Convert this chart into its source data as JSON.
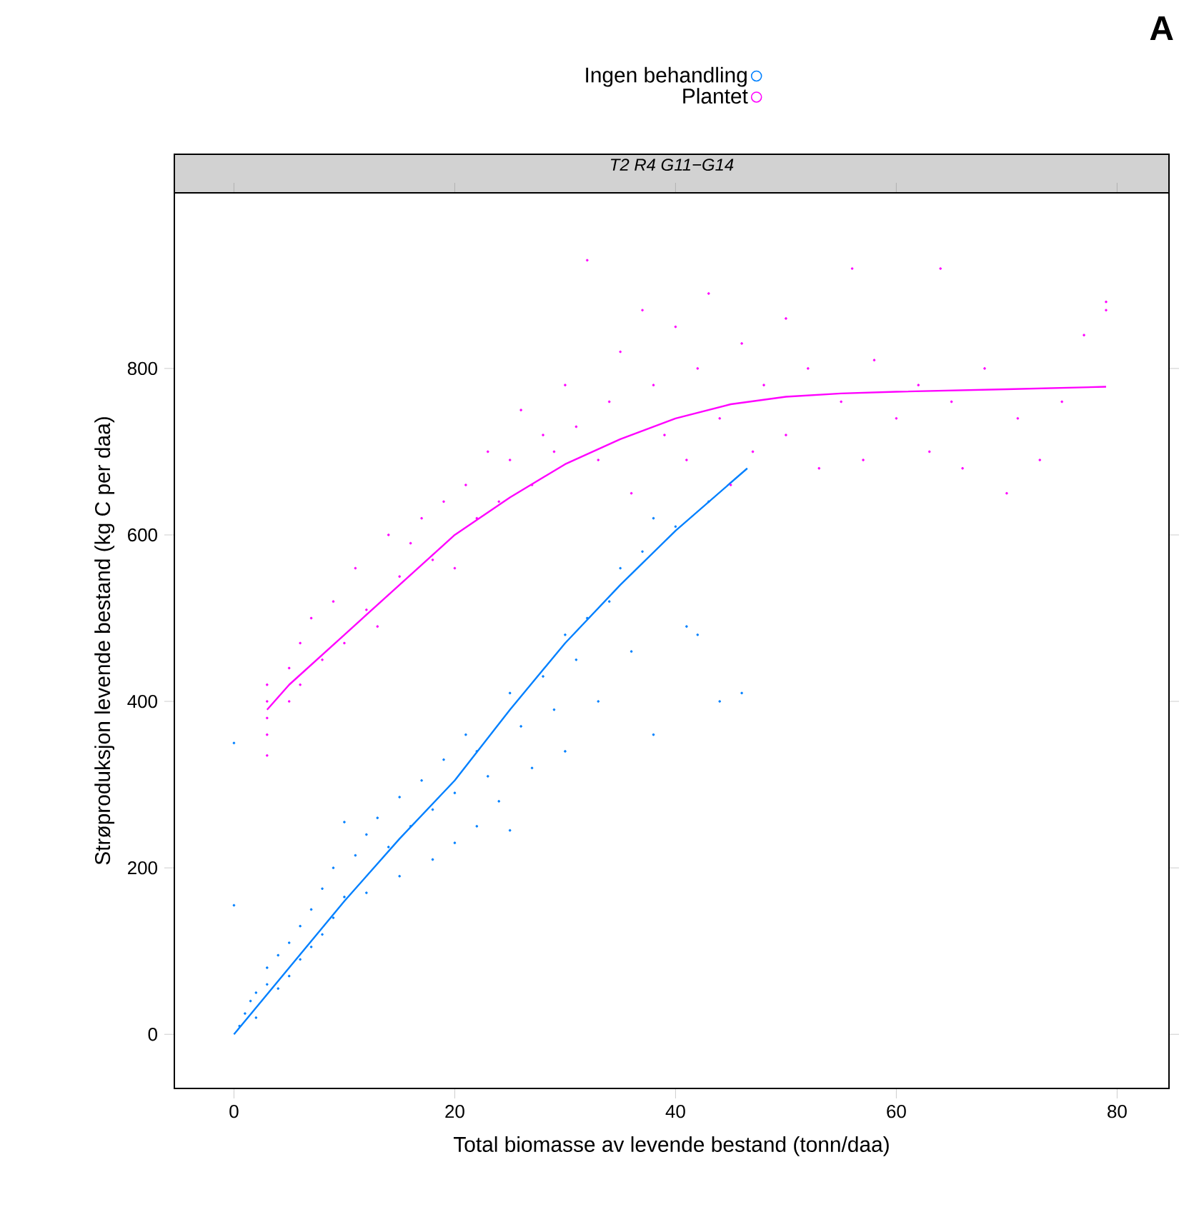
{
  "chart_data": {
    "type": "scatter",
    "title": "T2 R4 G11−G14",
    "xlabel": "Total biomasse av levende bestand (tonn/daa)",
    "ylabel": "Strøproduksjon levende bestand (kg C per daa)",
    "annotations": [
      "A"
    ],
    "legend": "top",
    "marker": "circle",
    "xlim": [
      -5.4,
      84.7
    ],
    "ylim": [
      -65,
      1011
    ],
    "xticks": [
      0,
      20,
      40,
      60,
      80
    ],
    "yticks": [
      0,
      200,
      400,
      600,
      800
    ],
    "series": [
      {
        "name": "Ingen behandling",
        "color": "#0080ff",
        "x": [
          0,
          0,
          0.5,
          1,
          1.5,
          2,
          2,
          3,
          3,
          4,
          4,
          5,
          5,
          6,
          6,
          7,
          7,
          8,
          8,
          9,
          9,
          10,
          10,
          11,
          12,
          12,
          13,
          14,
          15,
          15,
          16,
          17,
          18,
          18,
          19,
          20,
          20,
          21,
          22,
          22,
          23,
          24,
          25,
          25,
          26,
          27,
          28,
          29,
          30,
          30,
          31,
          32,
          33,
          34,
          35,
          36,
          37,
          38,
          38,
          40,
          41,
          42,
          44,
          46,
          43
        ],
        "values": [
          350,
          155,
          10,
          25,
          40,
          50,
          20,
          60,
          80,
          95,
          55,
          110,
          70,
          130,
          90,
          150,
          105,
          175,
          120,
          200,
          140,
          255,
          165,
          215,
          240,
          170,
          260,
          225,
          285,
          190,
          250,
          305,
          270,
          210,
          330,
          290,
          230,
          360,
          340,
          250,
          310,
          280,
          410,
          245,
          370,
          320,
          430,
          390,
          480,
          340,
          450,
          500,
          400,
          520,
          560,
          460,
          580,
          360,
          620,
          610,
          490,
          480,
          400,
          410,
          640
        ]
      },
      {
        "name": "Plantet",
        "color": "#ff00ff",
        "x": [
          3,
          3,
          3,
          3,
          3,
          5,
          5,
          6,
          6,
          7,
          8,
          9,
          10,
          11,
          12,
          13,
          14,
          15,
          16,
          17,
          18,
          19,
          20,
          21,
          22,
          23,
          24,
          25,
          26,
          27,
          28,
          29,
          30,
          31,
          32,
          33,
          34,
          35,
          36,
          37,
          38,
          39,
          40,
          41,
          42,
          43,
          44,
          45,
          46,
          47,
          48,
          50,
          50,
          52,
          53,
          55,
          56,
          57,
          58,
          60,
          62,
          63,
          64,
          65,
          66,
          68,
          70,
          71,
          73,
          75,
          77,
          79,
          79
        ],
        "values": [
          335,
          360,
          380,
          400,
          420,
          440,
          400,
          470,
          420,
          500,
          450,
          520,
          470,
          560,
          510,
          490,
          600,
          550,
          590,
          620,
          570,
          640,
          560,
          660,
          620,
          700,
          640,
          690,
          750,
          660,
          720,
          700,
          780,
          730,
          930,
          690,
          760,
          820,
          650,
          870,
          780,
          720,
          850,
          690,
          800,
          890,
          740,
          660,
          830,
          700,
          780,
          860,
          720,
          800,
          680,
          760,
          920,
          690,
          810,
          740,
          780,
          700,
          920,
          760,
          680,
          800,
          650,
          740,
          690,
          760,
          840,
          870,
          880
        ]
      },
      {
        "type": "line",
        "marker": "none",
        "color": "#0080ff",
        "x": [
          0,
          5,
          10,
          15,
          20,
          25,
          30,
          35,
          40,
          46.5
        ],
        "values": [
          0,
          80,
          160,
          235,
          305,
          390,
          470,
          540,
          605,
          680
        ]
      },
      {
        "type": "line",
        "marker": "none",
        "color": "#ff00ff",
        "x": [
          3,
          5,
          10,
          15,
          20,
          25,
          30,
          35,
          40,
          45,
          50,
          55,
          60,
          70,
          79
        ],
        "values": [
          390,
          420,
          480,
          540,
          600,
          645,
          685,
          715,
          740,
          757,
          766,
          770,
          772,
          775,
          778
        ]
      }
    ]
  }
}
